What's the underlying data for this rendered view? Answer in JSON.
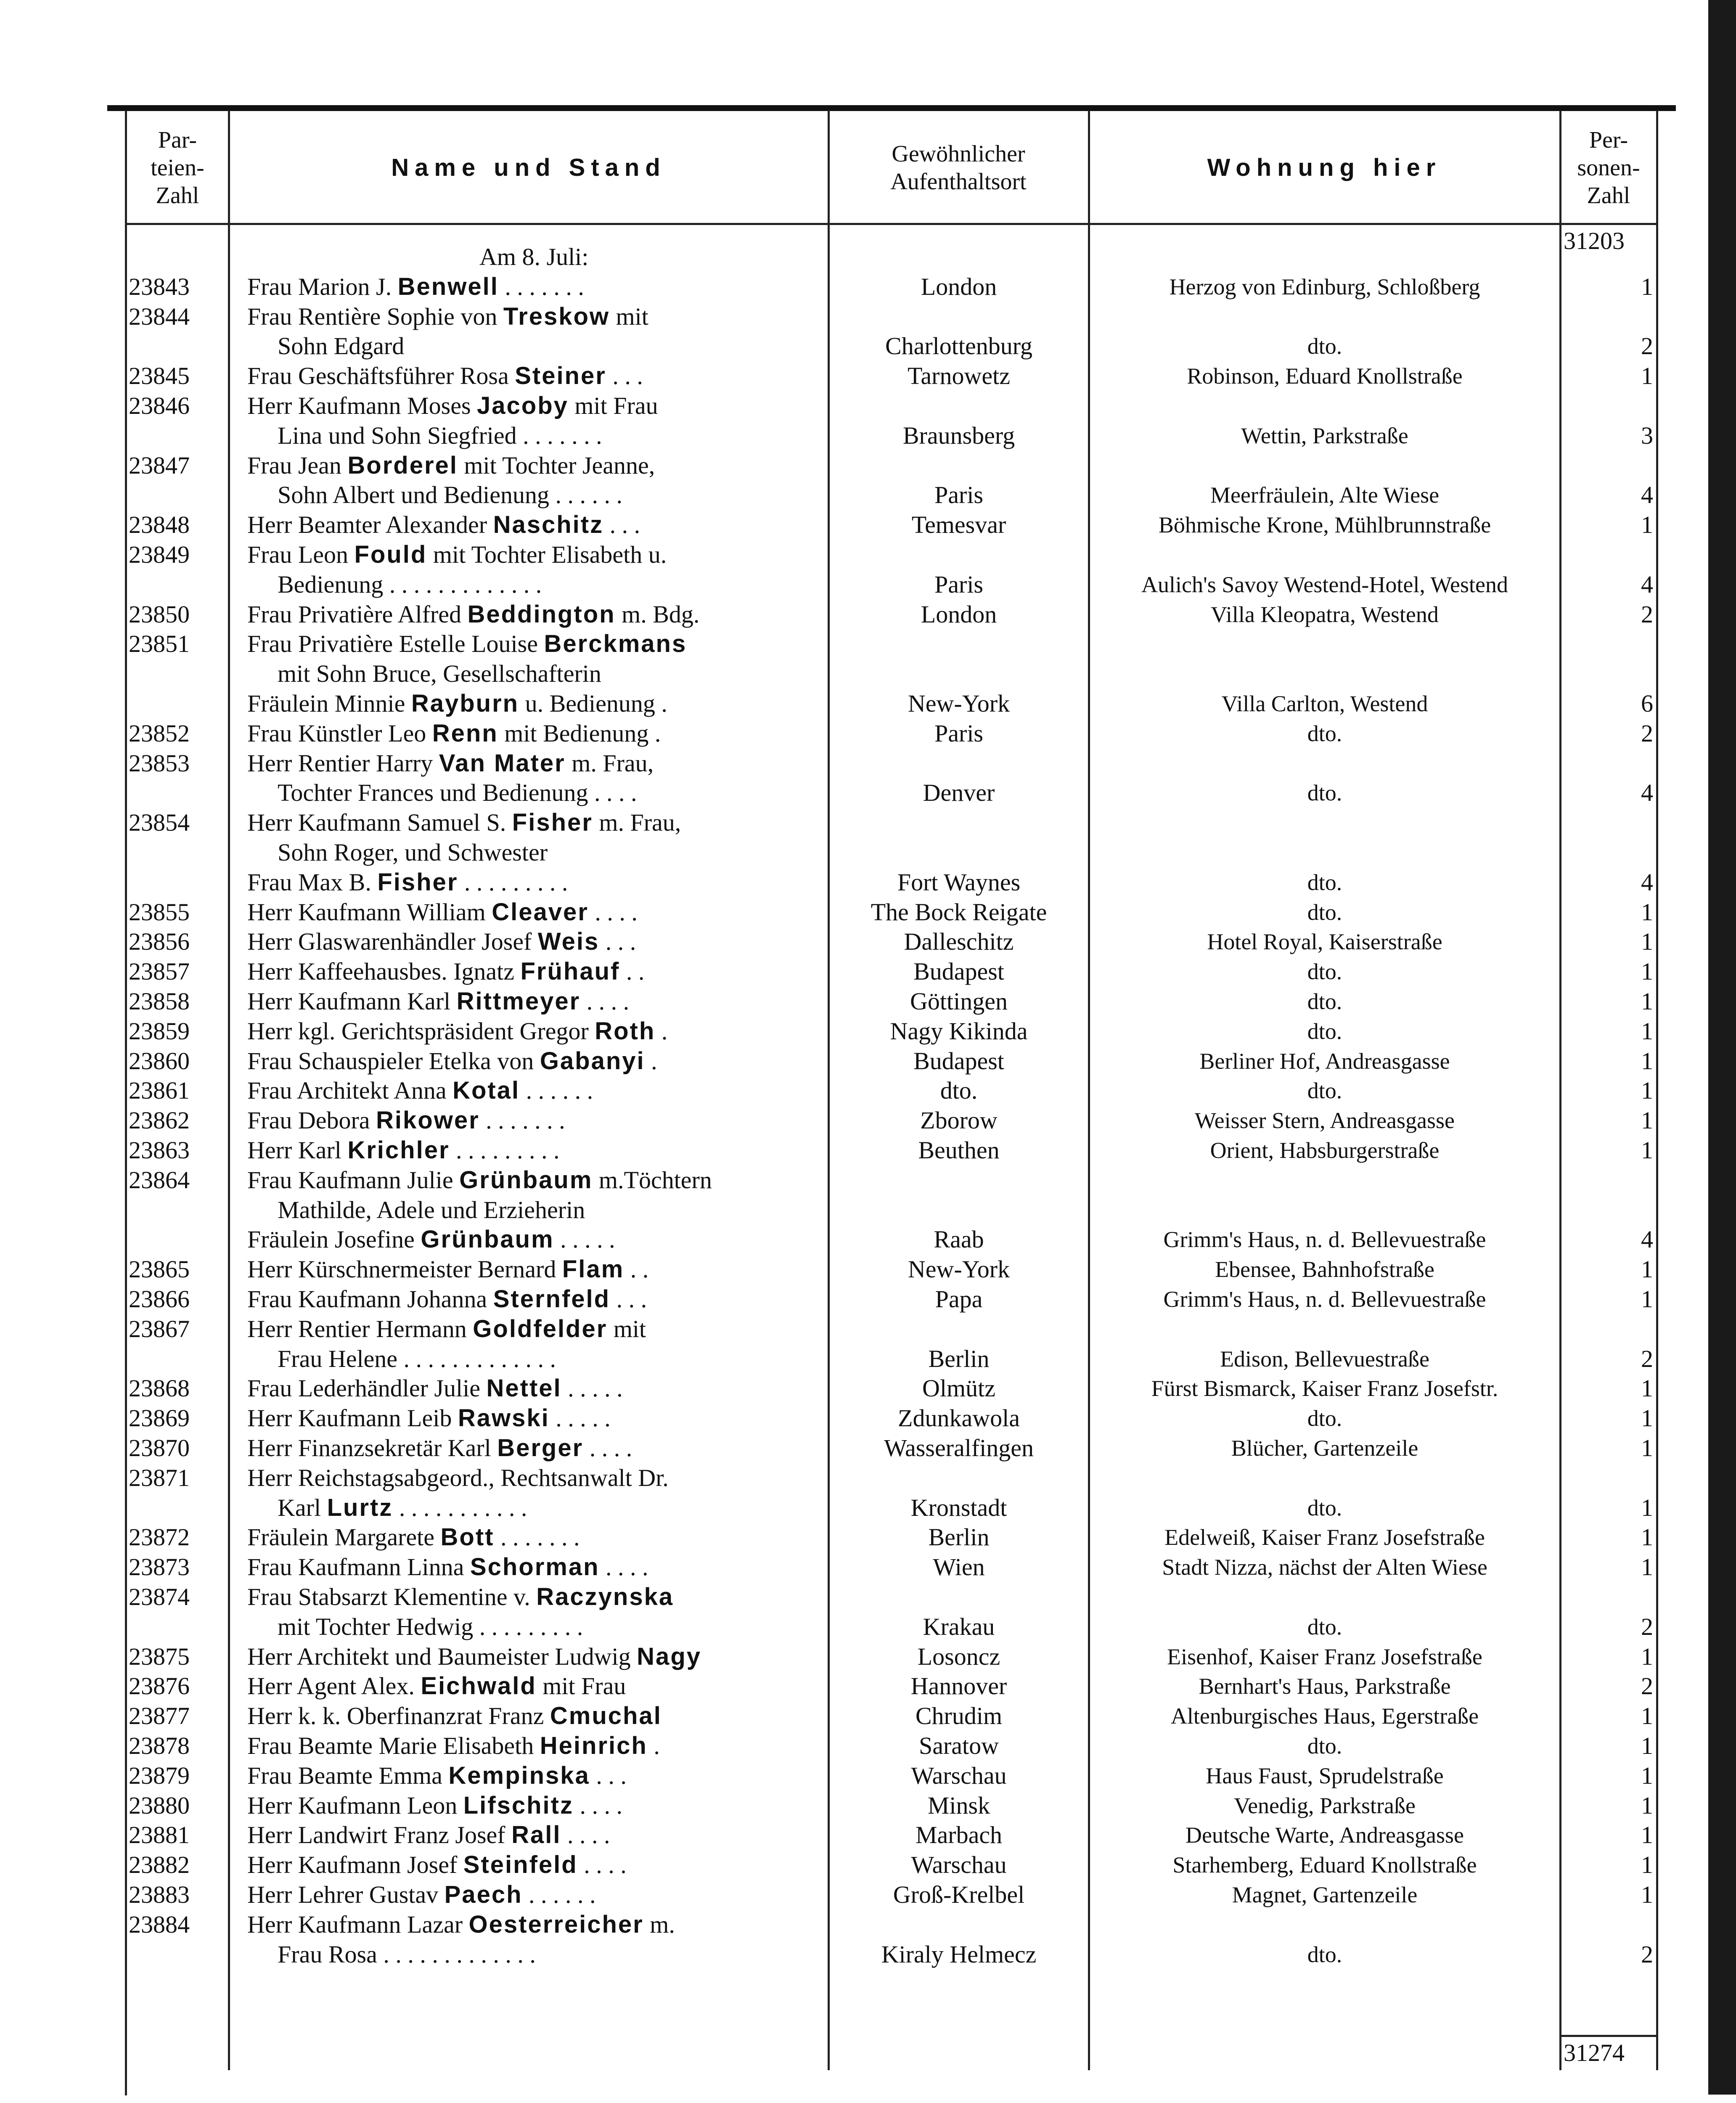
{
  "header": {
    "col_party": "Par-\nteien-\nZahl",
    "col_name": "Name und Stand",
    "col_origin": "Gewöhnlicher\nAufenthaltsort",
    "col_residence": "Wohnung hier",
    "col_persons": "Per-\nsonen-\nZahl"
  },
  "carry_over_total": "31203",
  "final_total": "31274",
  "date_heading": "Am 8. Juli:",
  "lines": [
    {
      "num": "23843",
      "pre": "Frau Marion J. ",
      "bold": "Benwell",
      "post": " . . . . . . .",
      "origin": "London",
      "res": "Herzog von Edinburg, Schloßberg",
      "pers": "1"
    },
    {
      "num": "23844",
      "pre": "Frau Rentière Sophie von ",
      "bold": "Treskow",
      "post": " mit"
    },
    {
      "cont": true,
      "pre": "Sohn Edgard",
      "origin": "Charlottenburg",
      "res": "dto.",
      "pers": "2"
    },
    {
      "num": "23845",
      "pre": "Frau Geschäftsführer Rosa ",
      "bold": "Steiner",
      "post": " . . .",
      "origin": "Tarnowetz",
      "res": "Robinson, Eduard Knollstraße",
      "pers": "1"
    },
    {
      "num": "23846",
      "pre": "Herr Kaufmann Moses ",
      "bold": "Jacoby",
      "post": " mit Frau"
    },
    {
      "cont": true,
      "pre": "Lina und Sohn Siegfried . . . . . . .",
      "origin": "Braunsberg",
      "res": "Wettin, Parkstraße",
      "pers": "3"
    },
    {
      "num": "23847",
      "pre": "Frau Jean ",
      "bold": "Borderel",
      "post": " mit Tochter Jeanne,"
    },
    {
      "cont": true,
      "pre": "Sohn Albert und Bedienung . . . . . .",
      "origin": "Paris",
      "res": "Meerfräulein, Alte Wiese",
      "pers": "4"
    },
    {
      "num": "23848",
      "pre": "Herr Beamter Alexander ",
      "bold": "Naschitz",
      "post": " . . .",
      "origin": "Temesvar",
      "res": "Böhmische Krone, Mühlbrunnstraße",
      "pers": "1"
    },
    {
      "num": "23849",
      "pre": "Frau Leon ",
      "bold": "Fould",
      "post": " mit Tochter Elisabeth u."
    },
    {
      "cont": true,
      "pre": "Bedienung . . . . . . . . . . . . .",
      "origin": "Paris",
      "res": "Aulich's Savoy Westend-Hotel, Westend",
      "pers": "4"
    },
    {
      "num": "23850",
      "pre": "Frau Privatière Alfred ",
      "bold": "Beddington",
      "post": " m. Bdg.",
      "origin": "London",
      "res": "Villa Kleopatra, Westend",
      "pers": "2"
    },
    {
      "num": "23851",
      "pre": "Frau Privatière Estelle Louise ",
      "bold": "Berckmans"
    },
    {
      "cont": true,
      "pre": "mit Sohn Bruce, Gesellschafterin"
    },
    {
      "pre": "Fräulein Minnie ",
      "bold": "Rayburn",
      "post": " u. Bedienung .",
      "origin": "New-York",
      "res": "Villa Carlton, Westend",
      "pers": "6"
    },
    {
      "num": "23852",
      "pre": "Frau Künstler Leo ",
      "bold": "Renn",
      "post": " mit Bedienung .",
      "origin": "Paris",
      "res": "dto.",
      "pers": "2"
    },
    {
      "num": "23853",
      "pre": "Herr Rentier Harry ",
      "bold": "Van Mater",
      "post": " m. Frau,"
    },
    {
      "cont": true,
      "pre": "Tochter Frances und Bedienung . . . .",
      "origin": "Denver",
      "res": "dto.",
      "pers": "4"
    },
    {
      "num": "23854",
      "pre": "Herr Kaufmann Samuel S. ",
      "bold": "Fisher",
      "post": " m. Frau,"
    },
    {
      "cont": true,
      "pre": "Sohn Roger, und Schwester"
    },
    {
      "pre": "Frau Max B. ",
      "bold": "Fisher",
      "post": " . . . . . . . . .",
      "origin": "Fort Waynes",
      "res": "dto.",
      "pers": "4"
    },
    {
      "num": "23855",
      "pre": "Herr Kaufmann William ",
      "bold": "Cleaver",
      "post": " . . . .",
      "origin": "The Bock Reigate",
      "res": "dto.",
      "pers": "1"
    },
    {
      "num": "23856",
      "pre": "Herr Glaswarenhändler Josef ",
      "bold": "Weis",
      "post": " . . .",
      "origin": "Dalleschitz",
      "res": "Hotel Royal, Kaiserstraße",
      "pers": "1"
    },
    {
      "num": "23857",
      "pre": "Herr Kaffeehausbes. Ignatz ",
      "bold": "Frühauf",
      "post": " . .",
      "origin": "Budapest",
      "res": "dto.",
      "pers": "1"
    },
    {
      "num": "23858",
      "pre": "Herr Kaufmann Karl ",
      "bold": "Rittmeyer",
      "post": " . . . .",
      "origin": "Göttingen",
      "res": "dto.",
      "pers": "1"
    },
    {
      "num": "23859",
      "pre": "Herr kgl. Gerichtspräsident Gregor ",
      "bold": "Roth",
      "post": " .",
      "origin": "Nagy Kikinda",
      "res": "dto.",
      "pers": "1"
    },
    {
      "num": "23860",
      "pre": "Frau Schauspieler Etelka von ",
      "bold": "Gabanyi",
      "post": " .",
      "origin": "Budapest",
      "res": "Berliner Hof, Andreasgasse",
      "pers": "1"
    },
    {
      "num": "23861",
      "pre": "Frau Architekt Anna ",
      "bold": "Kotal",
      "post": " . . . . . .",
      "origin": "dto.",
      "res": "dto.",
      "pers": "1"
    },
    {
      "num": "23862",
      "pre": "Frau Debora ",
      "bold": "Rikower",
      "post": " . . . . . . .",
      "origin": "Zborow",
      "res": "Weisser Stern, Andreasgasse",
      "pers": "1"
    },
    {
      "num": "23863",
      "pre": "Herr Karl ",
      "bold": "Krichler",
      "post": " . . . . . . . . .",
      "origin": "Beuthen",
      "res": "Orient, Habsburgerstraße",
      "pers": "1"
    },
    {
      "num": "23864",
      "pre": "Frau Kaufmann Julie ",
      "bold": "Grünbaum",
      "post": " m.Töchtern"
    },
    {
      "cont": true,
      "pre": "Mathilde, Adele und Erzieherin"
    },
    {
      "pre": "Fräulein Josefine ",
      "bold": "Grünbaum",
      "post": " . . . . .",
      "origin": "Raab",
      "res": "Grimm's Haus, n. d. Bellevuestraße",
      "pers": "4"
    },
    {
      "num": "23865",
      "pre": "Herr Kürschnermeister Bernard ",
      "bold": "Flam",
      "post": " . .",
      "origin": "New-York",
      "res": "Ebensee, Bahnhofstraße",
      "pers": "1"
    },
    {
      "num": "23866",
      "pre": "Frau Kaufmann Johanna ",
      "bold": "Sternfeld",
      "post": " . . .",
      "origin": "Papa",
      "res": "Grimm's Haus, n. d. Bellevuestraße",
      "pers": "1"
    },
    {
      "num": "23867",
      "pre": "Herr Rentier Hermann ",
      "bold": "Goldfelder",
      "post": " mit"
    },
    {
      "cont": true,
      "pre": "Frau Helene . . . . . . . . . . . . .",
      "origin": "Berlin",
      "res": "Edison, Bellevuestraße",
      "pers": "2"
    },
    {
      "num": "23868",
      "pre": "Frau Lederhändler Julie ",
      "bold": "Nettel",
      "post": " . . . . .",
      "origin": "Olmütz",
      "res": "Fürst Bismarck, Kaiser Franz Josefstr.",
      "pers": "1"
    },
    {
      "num": "23869",
      "pre": "Herr Kaufmann Leib ",
      "bold": "Rawski",
      "post": " . . . . .",
      "origin": "Zdunkawola",
      "res": "dto.",
      "pers": "1"
    },
    {
      "num": "23870",
      "pre": "Herr Finanzsekretär Karl ",
      "bold": "Berger",
      "post": " . . . .",
      "origin": "Wasseralfingen",
      "res": "Blücher, Gartenzeile",
      "pers": "1"
    },
    {
      "num": "23871",
      "pre": "Herr Reichstagsabgeord., Rechtsanwalt Dr."
    },
    {
      "cont": true,
      "pre": "Karl ",
      "bold": "Lurtz",
      "post": " . . . . . . . . . . .",
      "origin": "Kronstadt",
      "res": "dto.",
      "pers": "1"
    },
    {
      "num": "23872",
      "pre": "Fräulein Margarete ",
      "bold": "Bott",
      "post": " . . . . . . .",
      "origin": "Berlin",
      "res": "Edelweiß, Kaiser Franz Josefstraße",
      "pers": "1"
    },
    {
      "num": "23873",
      "pre": "Frau Kaufmann Linna ",
      "bold": "Schorman",
      "post": " . . . .",
      "origin": "Wien",
      "res": "Stadt Nizza, nächst der Alten Wiese",
      "pers": "1"
    },
    {
      "num": "23874",
      "pre": "Frau Stabsarzt Klementine v. ",
      "bold": "Raczynska"
    },
    {
      "cont": true,
      "pre": "mit Tochter Hedwig . . . . . . . . .",
      "origin": "Krakau",
      "res": "dto.",
      "pers": "2"
    },
    {
      "num": "23875",
      "pre": "Herr Architekt und Baumeister Ludwig ",
      "bold": "Nagy",
      "origin": "Losoncz",
      "res": "Eisenhof, Kaiser Franz Josefstraße",
      "pers": "1"
    },
    {
      "num": "23876",
      "pre": "Herr Agent Alex. ",
      "bold": "Eichwald",
      "post": " mit Frau",
      "origin": "Hannover",
      "res": "Bernhart's Haus, Parkstraße",
      "pers": "2"
    },
    {
      "num": "23877",
      "pre": "Herr k. k. Oberfinanzrat Franz ",
      "bold": "Cmuchal",
      "origin": "Chrudim",
      "res": "Altenburgisches Haus, Egerstraße",
      "pers": "1"
    },
    {
      "num": "23878",
      "pre": "Frau Beamte Marie Elisabeth ",
      "bold": "Heinrich",
      "post": " .",
      "origin": "Saratow",
      "res": "dto.",
      "pers": "1"
    },
    {
      "num": "23879",
      "pre": "Frau Beamte Emma ",
      "bold": "Kempinska",
      "post": " . . .",
      "origin": "Warschau",
      "res": "Haus Faust, Sprudelstraße",
      "pers": "1"
    },
    {
      "num": "23880",
      "pre": "Herr Kaufmann Leon ",
      "bold": "Lifschitz",
      "post": " . . . .",
      "origin": "Minsk",
      "res": "Venedig, Parkstraße",
      "pers": "1"
    },
    {
      "num": "23881",
      "pre": "Herr Landwirt Franz Josef ",
      "bold": "Rall",
      "post": " . . . .",
      "origin": "Marbach",
      "res": "Deutsche Warte, Andreasgasse",
      "pers": "1"
    },
    {
      "num": "23882",
      "pre": "Herr Kaufmann Josef ",
      "bold": "Steinfeld",
      "post": " . . . .",
      "origin": "Warschau",
      "res": "Starhemberg, Eduard Knollstraße",
      "pers": "1"
    },
    {
      "num": "23883",
      "pre": "Herr Lehrer Gustav ",
      "bold": "Paech",
      "post": " . . . . . .",
      "origin": "Groß-Krelbel",
      "res": "Magnet, Gartenzeile",
      "pers": "1"
    },
    {
      "num": "23884",
      "pre": "Herr Kaufmann Lazar ",
      "bold": "Oesterreicher",
      "post": " m."
    },
    {
      "cont": true,
      "pre": "Frau Rosa . . . . . . . . . . . . .",
      "origin": "Kiraly Helmecz",
      "res": "dto.",
      "pers": "2"
    }
  ]
}
